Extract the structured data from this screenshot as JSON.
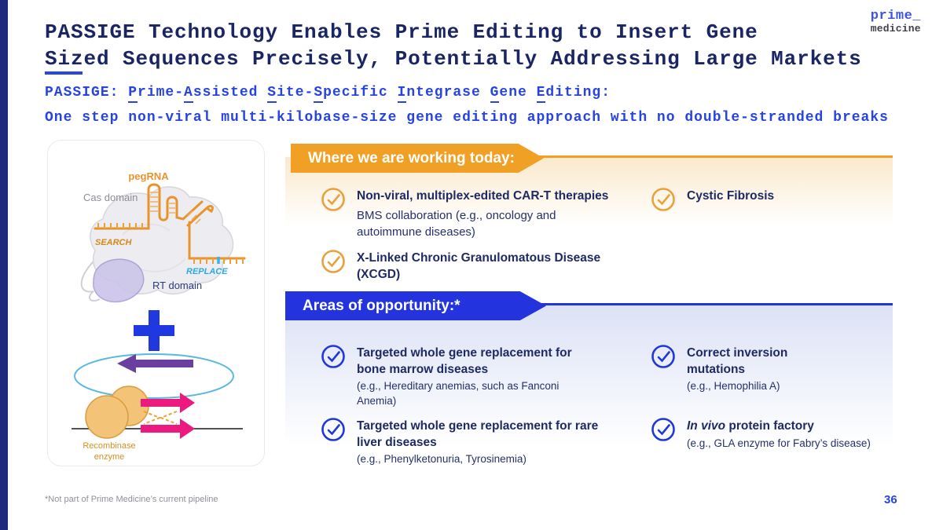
{
  "slide": {
    "title_line1": "PASSIGE Technology Enables Prime Editing to Insert Gene",
    "title_line2": "Sized Sequences Precisely, Potentially Addressing Large Markets",
    "tagline": "One step non-viral multi-kilobase-size gene editing approach with no double-stranded breaks",
    "footnote": "*Not part of Prime Medicine’s current pipeline",
    "page_number": "36"
  },
  "logo": {
    "top": "prime_",
    "bottom": "medicine"
  },
  "acronym": {
    "segments": [
      {
        "t": "PASSIGE: ",
        "u": false
      },
      {
        "t": "P",
        "u": true
      },
      {
        "t": "rime-",
        "u": false
      },
      {
        "t": "A",
        "u": true
      },
      {
        "t": "ssisted ",
        "u": false
      },
      {
        "t": "S",
        "u": true
      },
      {
        "t": "ite-",
        "u": false
      },
      {
        "t": "S",
        "u": true
      },
      {
        "t": "pecific ",
        "u": false
      },
      {
        "t": "I",
        "u": true
      },
      {
        "t": "ntegrase ",
        "u": false
      },
      {
        "t": "G",
        "u": true
      },
      {
        "t": "ene ",
        "u": false
      },
      {
        "t": "E",
        "u": true
      },
      {
        "t": "diting:",
        "u": false
      }
    ]
  },
  "diagram": {
    "pegrna_label": "pegRNA",
    "cas_label": "Cas domain",
    "search_label": "SEARCH",
    "replace_label": "REPLACE",
    "rt_label": "RT domain",
    "recombinase_line1": "Recombinase",
    "recombinase_line2": "enzyme"
  },
  "sections": {
    "today": {
      "label": "Where we are working today:",
      "items": [
        {
          "title": "Non-viral, multiplex-edited CAR-T therapies",
          "sub": "BMS collaboration (e.g., oncology and autoimmune diseases)"
        },
        {
          "title": "Cystic Fibrosis",
          "sub": ""
        },
        {
          "title": "X-Linked Chronic Granulomatous Disease (XCGD)",
          "sub": ""
        }
      ]
    },
    "opportunity": {
      "label": "Areas of opportunity:*",
      "items": [
        {
          "title": "Targeted whole gene replacement for bone marrow diseases",
          "sub": "(e.g., Hereditary anemias, such as Fanconi Anemia)"
        },
        {
          "title": "Correct inversion mutations",
          "sub": "(e.g., Hemophilia A)"
        },
        {
          "title": "Targeted whole gene replacement for rare liver diseases",
          "sub": "(e.g., Phenylketonuria, Tyrosinemia)"
        },
        {
          "title_italic": "In vivo",
          "title_rest": " protein factory",
          "sub": "(e.g., GLA enzyme for Fabry’s disease)"
        }
      ]
    }
  },
  "colors": {
    "accent_blue": "#2744E0",
    "banner_orange": "#F0A125",
    "banner_blue": "#2334DE",
    "navy_text": "#1E2A63",
    "check_orange": "#E8A23C",
    "check_blue": "#2038D8"
  }
}
